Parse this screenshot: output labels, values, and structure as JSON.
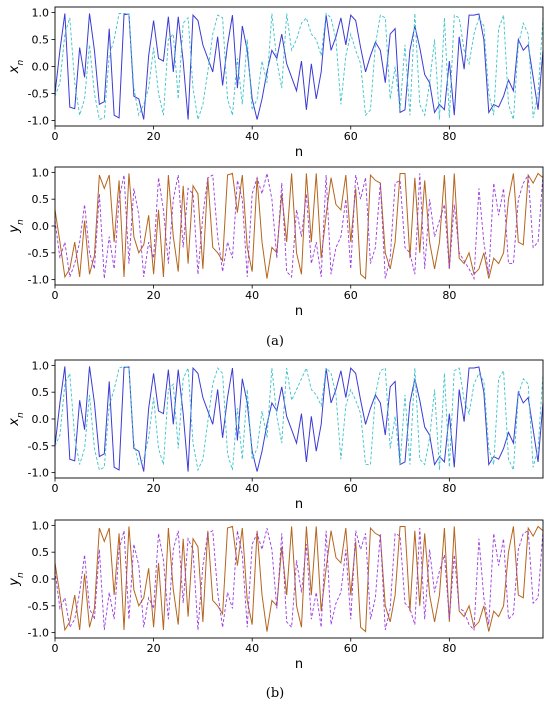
{
  "figure": {
    "panel_labels": [
      "(a)",
      "(b)"
    ]
  },
  "colors": {
    "x_solid": "#3b3bd6",
    "x_dashed": "#3cc3c8",
    "y_solid": "#b5651d",
    "y_dashed": "#9a3be0"
  },
  "chart_data": [
    {
      "type": "line",
      "panel": "a",
      "ylabel": "x_n",
      "xlabel": "n",
      "xlim": [
        0,
        99
      ],
      "ylim": [
        -1.1,
        1.1
      ],
      "xticks": [
        0,
        20,
        40,
        60,
        80
      ],
      "yticks": [
        -1.0,
        -0.5,
        0.0,
        0.5,
        1.0
      ],
      "series": [
        {
          "style": "solid",
          "color": "#3b3bd6",
          "values": [
            -0.5,
            0.3,
            0.98,
            -0.75,
            -0.78,
            0.35,
            -0.2,
            0.98,
            0.3,
            -0.7,
            -0.65,
            0.7,
            -0.9,
            -0.95,
            0.96,
            0.97,
            -0.55,
            -0.6,
            -0.98,
            0.2,
            0.85,
            0.15,
            0.1,
            0.92,
            -0.1,
            0.92,
            0.1,
            -0.98,
            0.95,
            0.85,
            0.4,
            0.15,
            -0.1,
            0.55,
            -0.35,
            0.4,
            0.95,
            -0.4,
            0.75,
            0.3,
            -0.6,
            -0.98,
            -0.6,
            -0.1,
            0.3,
            0.15,
            0.6,
            0.05,
            -0.2,
            -0.45,
            0.1,
            -0.8,
            0.05,
            -0.6,
            -0.1,
            0.95,
            0.3,
            0.55,
            0.9,
            0.4,
            0.95,
            0.85,
            0.35,
            -0.1,
            0.2,
            0.45,
            0.3,
            -0.3,
            0.6,
            0.7,
            -0.85,
            -0.8,
            0.3,
            0.75,
            0.35,
            -0.15,
            -0.3,
            -0.85,
            -0.7,
            -0.8,
            0.1,
            -0.9,
            0.55,
            -0.05,
            0.95,
            0.95,
            0.97,
            0.5,
            -0.85,
            -0.7,
            -0.75,
            -0.55,
            -0.25,
            -0.45,
            0.5,
            0.3,
            0.4,
            -0.2,
            -0.8,
            0.3
          ]
        },
        {
          "style": "dashed",
          "color": "#3cc3c8",
          "values": [
            -0.55,
            -0.3,
            0.6,
            0.9,
            -0.3,
            -0.9,
            -0.6,
            0.4,
            -0.5,
            -0.98,
            -0.95,
            0.2,
            0.5,
            0.98,
            0.98,
            0.97,
            -0.4,
            -0.9,
            -0.7,
            -0.4,
            0.35,
            -0.5,
            -0.9,
            0.5,
            0.6,
            -0.6,
            0.8,
            0.9,
            -0.4,
            -0.98,
            -0.7,
            -0.1,
            0.6,
            0.95,
            0.9,
            -0.6,
            -0.9,
            0.15,
            -0.7,
            0.5,
            -0.8,
            -0.6,
            0.1,
            -0.3,
            0.98,
            0.1,
            -0.4,
            0.98,
            0.3,
            0.5,
            0.8,
            0.9,
            0.6,
            0.5,
            0.2,
            0.98,
            0.9,
            0.5,
            -0.7,
            0.2,
            0.6,
            0.3,
            0.05,
            -0.9,
            -0.8,
            0.4,
            0.95,
            0.9,
            -0.6,
            0.0,
            -0.8,
            0.4,
            -0.9,
            0.98,
            -0.7,
            -0.9,
            -0.3,
            0.5,
            -0.98,
            0.9,
            -0.95,
            0.95,
            0.9,
            0.3,
            0.05,
            0.6,
            0.9,
            0.75,
            -0.5,
            -0.9,
            0.7,
            0.95,
            -0.7,
            -0.98,
            0.4,
            0.8,
            0.6,
            -0.95,
            -0.5,
            0.9
          ]
        }
      ]
    },
    {
      "type": "line",
      "panel": "a",
      "ylabel": "y_n",
      "xlabel": "n",
      "xlim": [
        0,
        99
      ],
      "ylim": [
        -1.1,
        1.1
      ],
      "xticks": [
        0,
        20,
        40,
        60,
        80
      ],
      "yticks": [
        -1.0,
        -0.5,
        0.0,
        0.5,
        1.0
      ],
      "series": [
        {
          "style": "solid",
          "color": "#b5651d",
          "values": [
            0.3,
            -0.3,
            -0.95,
            -0.8,
            -0.3,
            -0.95,
            0.1,
            -0.9,
            -0.55,
            0.95,
            0.7,
            0.95,
            -0.3,
            0.85,
            -0.95,
            0.98,
            -0.2,
            -0.5,
            -0.35,
            0.2,
            -0.9,
            0.3,
            -0.95,
            0.95,
            -0.2,
            -0.85,
            0.75,
            -0.7,
            0.75,
            0.6,
            -0.8,
            0.9,
            -0.4,
            -0.5,
            -0.65,
            0.95,
            0.98,
            0.25,
            0.95,
            -0.4,
            -0.85,
            0.9,
            -0.3,
            -0.98,
            -0.4,
            -0.5,
            0.6,
            -0.3,
            0.98,
            -0.5,
            -0.9,
            0.98,
            -0.3,
            0.98,
            -0.6,
            0.2,
            0.9,
            0.4,
            0.3,
            0.95,
            -0.3,
            0.7,
            -0.9,
            -0.98,
            0.95,
            0.85,
            0.8,
            -0.5,
            -0.8,
            -0.3,
            0.98,
            0.98,
            -0.6,
            0.9,
            -0.5,
            0.85,
            -0.3,
            -0.8,
            -0.3,
            0.95,
            -0.8,
            0.98,
            -0.6,
            -0.7,
            -0.5,
            -0.9,
            -0.8,
            -0.5,
            -0.98,
            -0.6,
            -0.7,
            -0.5,
            0.5,
            0.98,
            -0.3,
            -0.35,
            0.95,
            0.8,
            0.98,
            0.9
          ]
        },
        {
          "style": "dashed",
          "color": "#9a3be0",
          "values": [
            0.1,
            -0.6,
            -0.3,
            -0.95,
            -0.7,
            -0.3,
            0.4,
            -0.5,
            -0.8,
            0.6,
            -0.98,
            -0.2,
            -0.8,
            0.5,
            0.95,
            -0.7,
            0.7,
            0.2,
            -0.95,
            -0.3,
            -0.6,
            0.9,
            0.3,
            -0.7,
            0.5,
            0.95,
            -0.4,
            0.7,
            0.6,
            -0.9,
            0.2,
            0.9,
            0.95,
            -0.2,
            -0.85,
            -0.3,
            -0.6,
            0.85,
            0.5,
            -0.95,
            0.6,
            0.9,
            0.6,
            0.98,
            0.5,
            -0.6,
            0.8,
            -0.85,
            -0.95,
            0.3,
            -0.2,
            0.6,
            -0.7,
            -0.3,
            -0.95,
            0.95,
            -0.9,
            -0.4,
            -0.2,
            0.5,
            -0.8,
            0.95,
            0.5,
            0.9,
            -0.7,
            -0.4,
            0.8,
            -0.98,
            -0.6,
            0.8,
            0.85,
            -0.4,
            -0.5,
            -0.9,
            0.98,
            -0.8,
            0.5,
            -0.2,
            0.1,
            0.4,
            -0.8,
            0.4,
            -0.5,
            -0.65,
            -0.8,
            -0.98,
            0.7,
            -0.3,
            -0.9,
            0.8,
            0.2,
            0.7,
            -0.7,
            -0.7,
            0.5,
            0.8,
            0.95,
            -0.4,
            -0.3,
            0.95
          ]
        }
      ]
    },
    {
      "type": "line",
      "panel": "b",
      "ylabel": "x_n",
      "xlabel": "n",
      "xlim": [
        0,
        99
      ],
      "ylim": [
        -1.1,
        1.1
      ],
      "xticks": [
        0,
        20,
        40,
        60,
        80
      ],
      "yticks": [
        -1.0,
        -0.5,
        0.0,
        0.5,
        1.0
      ],
      "series": [
        {
          "style": "solid",
          "color": "#3b3bd6",
          "values": [
            -0.5,
            0.3,
            0.98,
            -0.75,
            -0.78,
            0.35,
            -0.2,
            0.98,
            0.3,
            -0.7,
            -0.65,
            0.7,
            -0.9,
            -0.95,
            0.96,
            0.97,
            -0.55,
            -0.6,
            -0.98,
            0.2,
            0.85,
            0.15,
            0.1,
            0.92,
            -0.1,
            0.92,
            0.1,
            -0.98,
            0.95,
            0.85,
            0.4,
            0.15,
            -0.1,
            0.55,
            -0.35,
            0.4,
            0.95,
            -0.4,
            0.75,
            0.3,
            -0.6,
            -0.98,
            -0.6,
            -0.1,
            0.3,
            0.15,
            0.6,
            0.05,
            -0.2,
            -0.45,
            0.1,
            -0.8,
            0.05,
            -0.6,
            -0.1,
            0.95,
            0.3,
            0.55,
            0.9,
            0.4,
            0.95,
            0.85,
            0.35,
            -0.1,
            0.2,
            0.45,
            0.3,
            -0.3,
            0.6,
            0.7,
            -0.85,
            -0.8,
            0.3,
            0.75,
            0.35,
            -0.15,
            -0.3,
            -0.85,
            -0.7,
            -0.8,
            0.1,
            -0.9,
            0.55,
            -0.05,
            0.95,
            0.95,
            0.97,
            0.5,
            -0.85,
            -0.7,
            -0.75,
            -0.55,
            -0.25,
            -0.45,
            0.5,
            0.3,
            0.4,
            -0.2,
            -0.8,
            0.3
          ]
        },
        {
          "style": "dashed",
          "color": "#3cc3c8",
          "values": [
            -0.5,
            -0.3,
            0.65,
            0.85,
            -0.35,
            -0.85,
            -0.55,
            0.45,
            -0.55,
            -0.95,
            -0.9,
            0.25,
            0.55,
            0.95,
            0.98,
            0.95,
            -0.45,
            -0.85,
            -0.75,
            -0.35,
            0.4,
            -0.55,
            -0.85,
            0.55,
            0.65,
            -0.55,
            0.75,
            0.95,
            -0.45,
            -0.95,
            -0.75,
            -0.05,
            0.65,
            0.95,
            0.85,
            -0.65,
            -0.95,
            0.2,
            -0.75,
            0.55,
            -0.75,
            -0.55,
            0.15,
            -0.35,
            0.95,
            0.05,
            -0.45,
            0.95,
            0.35,
            0.55,
            0.75,
            0.95,
            0.55,
            0.45,
            0.25,
            0.95,
            0.85,
            0.45,
            -0.75,
            0.25,
            0.55,
            0.35,
            0.1,
            -0.85,
            -0.85,
            0.45,
            0.9,
            0.95,
            -0.55,
            0.05,
            -0.85,
            0.45,
            -0.85,
            0.95,
            -0.75,
            -0.85,
            -0.35,
            0.55,
            -0.95,
            0.85,
            -0.9,
            0.9,
            0.95,
            0.35,
            0.1,
            0.65,
            0.85,
            0.7,
            -0.55,
            -0.85,
            0.75,
            0.9,
            -0.75,
            -0.95,
            0.45,
            0.75,
            0.65,
            -0.9,
            -0.55,
            0.85
          ]
        }
      ]
    },
    {
      "type": "line",
      "panel": "b",
      "ylabel": "y_n",
      "xlabel": "n",
      "xlim": [
        0,
        99
      ],
      "ylim": [
        -1.1,
        1.1
      ],
      "xticks": [
        0,
        20,
        40,
        60,
        80
      ],
      "yticks": [
        -1.0,
        -0.5,
        0.0,
        0.5,
        1.0
      ],
      "series": [
        {
          "style": "solid",
          "color": "#b5651d",
          "values": [
            0.3,
            -0.3,
            -0.95,
            -0.8,
            -0.3,
            -0.95,
            0.1,
            -0.9,
            -0.55,
            0.95,
            0.7,
            0.95,
            -0.3,
            0.85,
            -0.95,
            0.98,
            -0.2,
            -0.5,
            -0.35,
            0.2,
            -0.9,
            0.3,
            -0.95,
            0.95,
            -0.2,
            -0.85,
            0.75,
            -0.7,
            0.75,
            0.6,
            -0.8,
            0.9,
            -0.4,
            -0.5,
            -0.65,
            0.95,
            0.98,
            0.25,
            0.95,
            -0.4,
            -0.85,
            0.9,
            -0.3,
            -0.98,
            -0.4,
            -0.5,
            0.6,
            -0.3,
            0.98,
            -0.5,
            -0.9,
            0.98,
            -0.3,
            0.98,
            -0.6,
            0.2,
            0.9,
            0.4,
            0.3,
            0.95,
            -0.3,
            0.7,
            -0.9,
            -0.98,
            0.95,
            0.85,
            0.8,
            -0.5,
            -0.8,
            -0.3,
            0.98,
            0.98,
            -0.6,
            0.9,
            -0.5,
            0.85,
            -0.3,
            -0.8,
            -0.3,
            0.95,
            -0.8,
            0.98,
            -0.6,
            -0.7,
            -0.5,
            -0.9,
            -0.8,
            -0.5,
            -0.98,
            -0.6,
            -0.7,
            -0.5,
            0.5,
            0.98,
            -0.3,
            -0.35,
            0.95,
            0.8,
            0.98,
            0.9
          ]
        },
        {
          "style": "dashed",
          "color": "#9a3be0",
          "values": [
            0.15,
            -0.55,
            -0.35,
            -0.9,
            -0.75,
            -0.25,
            0.45,
            -0.55,
            -0.75,
            0.55,
            -0.95,
            -0.25,
            -0.75,
            0.55,
            0.9,
            -0.75,
            0.65,
            0.25,
            -0.9,
            -0.35,
            -0.55,
            0.85,
            0.35,
            -0.75,
            0.55,
            0.9,
            -0.45,
            0.75,
            0.55,
            -0.95,
            0.25,
            0.85,
            0.9,
            -0.25,
            -0.9,
            -0.25,
            -0.55,
            0.9,
            0.45,
            -0.9,
            0.65,
            0.85,
            0.55,
            0.95,
            0.55,
            -0.55,
            0.85,
            -0.8,
            -0.9,
            0.35,
            -0.25,
            0.65,
            -0.75,
            -0.25,
            -0.9,
            0.9,
            -0.85,
            -0.45,
            -0.25,
            0.55,
            -0.75,
            0.9,
            0.55,
            0.85,
            -0.75,
            -0.35,
            0.85,
            -0.95,
            -0.55,
            0.85,
            0.8,
            -0.45,
            -0.55,
            -0.85,
            0.95,
            -0.75,
            0.55,
            -0.25,
            0.15,
            0.45,
            -0.75,
            0.45,
            -0.55,
            -0.6,
            -0.85,
            -0.95,
            0.75,
            -0.35,
            -0.85,
            0.85,
            0.25,
            0.75,
            -0.75,
            -0.65,
            0.55,
            0.85,
            0.9,
            -0.45,
            -0.35,
            0.9
          ]
        }
      ]
    }
  ]
}
